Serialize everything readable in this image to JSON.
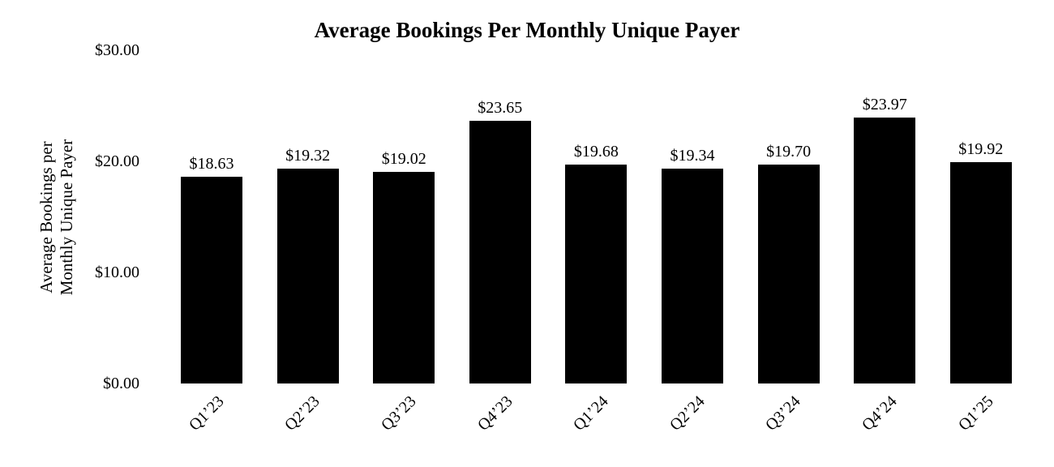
{
  "chart": {
    "title": "Average Bookings Per Monthly Unique Payer",
    "y_axis_title_line1": "Average Bookings per",
    "y_axis_title_line2": "Monthly Unique Payer"
  },
  "chart_data": {
    "type": "bar",
    "title": "Average Bookings Per Monthly Unique Payer",
    "categories": [
      "Q1’23",
      "Q2’23",
      "Q3’23",
      "Q4’23",
      "Q1’24",
      "Q2’24",
      "Q3’24",
      "Q4’24",
      "Q1’25"
    ],
    "values": [
      18.63,
      19.32,
      19.02,
      23.65,
      19.68,
      19.34,
      19.7,
      23.97,
      19.92
    ],
    "data_labels": [
      "$18.63",
      "$19.32",
      "$19.02",
      "$23.65",
      "$19.68",
      "$19.34",
      "$19.70",
      "$23.97",
      "$19.92"
    ],
    "xlabel": "",
    "ylabel": [
      "Average Bookings per",
      "Monthly Unique Payer"
    ],
    "ylim": [
      0,
      30
    ],
    "yticks": [
      {
        "label": "$0.00",
        "value": 0
      },
      {
        "label": "$10.00",
        "value": 10
      },
      {
        "label": "$20.00",
        "value": 20
      },
      {
        "label": "$30.00",
        "value": 30
      }
    ],
    "grid": false,
    "axis_lines": false,
    "legend_position": "none",
    "bar_color": "#000000",
    "background_color": "#ffffff",
    "text_color": "#000000"
  }
}
